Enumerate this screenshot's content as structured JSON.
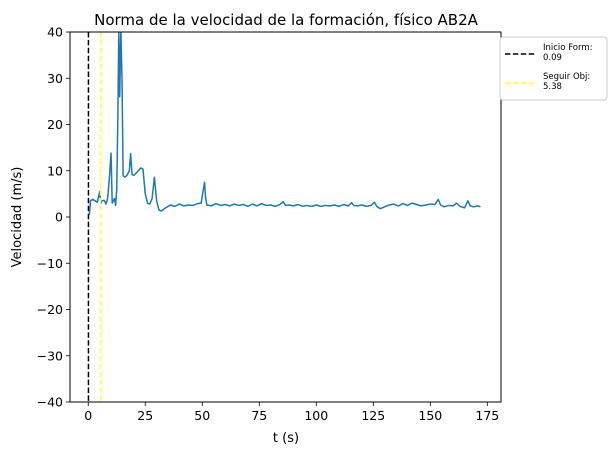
{
  "chart_data": {
    "type": "line",
    "title": "Norma de la velocidad de la formación, físico AB2A",
    "xlabel": "t (s)",
    "ylabel": "Velocidad (m/s)",
    "xlim": [
      -8,
      181
    ],
    "ylim": [
      -40,
      40
    ],
    "xticks": [
      0,
      25,
      50,
      75,
      100,
      125,
      150,
      175
    ],
    "yticks": [
      -40,
      -30,
      -20,
      -10,
      0,
      10,
      20,
      30,
      40
    ],
    "grid": false,
    "legend_position": "outside-top-right",
    "series": [
      {
        "color": "#1f77b4",
        "points": [
          [
            0.5,
            0.5
          ],
          [
            1,
            3.5
          ],
          [
            2,
            3.8
          ],
          [
            3,
            3.5
          ],
          [
            4,
            3.2
          ],
          [
            5,
            5.5
          ],
          [
            5.5,
            3.0
          ],
          [
            6,
            3.5
          ],
          [
            7,
            3.6
          ],
          [
            7.8,
            2.8
          ],
          [
            8.5,
            4.0
          ],
          [
            9.2,
            8.0
          ],
          [
            10,
            13.8
          ],
          [
            10.5,
            3.0
          ],
          [
            11,
            3.5
          ],
          [
            11.5,
            4.0
          ],
          [
            12,
            2.5
          ],
          [
            12.5,
            6.0
          ],
          [
            13,
            22.0
          ],
          [
            13.4,
            40.5
          ],
          [
            13.8,
            26.0
          ],
          [
            14.3,
            40.5
          ],
          [
            14.8,
            30.0
          ],
          [
            15.3,
            9.0
          ],
          [
            16,
            8.6
          ],
          [
            17,
            9.0
          ],
          [
            18,
            10.0
          ],
          [
            18.6,
            13.7
          ],
          [
            19.2,
            9.2
          ],
          [
            20,
            9.0
          ],
          [
            21,
            9.5
          ],
          [
            22,
            10.0
          ],
          [
            23,
            10.6
          ],
          [
            24,
            10.4
          ],
          [
            25,
            5.0
          ],
          [
            26,
            3.0
          ],
          [
            27,
            2.8
          ],
          [
            28,
            4.0
          ],
          [
            29,
            8.6
          ],
          [
            30,
            3.5
          ],
          [
            31,
            1.5
          ],
          [
            32,
            1.3
          ],
          [
            34,
            2.0
          ],
          [
            36,
            2.6
          ],
          [
            38,
            2.3
          ],
          [
            40,
            2.8
          ],
          [
            42,
            2.4
          ],
          [
            44,
            2.6
          ],
          [
            46,
            2.5
          ],
          [
            48,
            2.9
          ],
          [
            49.5,
            3.0
          ],
          [
            50.5,
            6.0
          ],
          [
            51,
            7.5
          ],
          [
            51.5,
            4.0
          ],
          [
            52,
            2.6
          ],
          [
            54,
            2.4
          ],
          [
            56,
            2.9
          ],
          [
            58,
            2.5
          ],
          [
            60,
            2.7
          ],
          [
            62,
            2.4
          ],
          [
            64,
            2.8
          ],
          [
            66,
            2.5
          ],
          [
            68,
            2.7
          ],
          [
            70,
            2.3
          ],
          [
            72,
            2.8
          ],
          [
            74,
            2.4
          ],
          [
            76,
            2.9
          ],
          [
            78,
            2.5
          ],
          [
            80,
            2.6
          ],
          [
            82,
            2.3
          ],
          [
            84,
            2.7
          ],
          [
            85.5,
            3.3
          ],
          [
            86.5,
            2.5
          ],
          [
            88,
            2.6
          ],
          [
            90,
            2.4
          ],
          [
            92,
            2.7
          ],
          [
            94,
            2.3
          ],
          [
            96,
            2.5
          ],
          [
            98,
            2.3
          ],
          [
            100,
            2.6
          ],
          [
            102,
            2.3
          ],
          [
            104,
            2.5
          ],
          [
            106,
            2.4
          ],
          [
            108,
            2.6
          ],
          [
            110,
            2.3
          ],
          [
            112,
            2.7
          ],
          [
            114,
            2.4
          ],
          [
            115.5,
            3.1
          ],
          [
            116.5,
            2.5
          ],
          [
            118,
            2.4
          ],
          [
            120,
            2.6
          ],
          [
            122,
            2.3
          ],
          [
            124,
            2.5
          ],
          [
            125.5,
            3.2
          ],
          [
            126.5,
            2.3
          ],
          [
            128,
            1.8
          ],
          [
            130,
            2.2
          ],
          [
            132,
            2.6
          ],
          [
            134,
            2.8
          ],
          [
            136,
            2.4
          ],
          [
            138,
            2.9
          ],
          [
            140,
            2.5
          ],
          [
            142,
            3.0
          ],
          [
            144,
            2.7
          ],
          [
            146,
            2.4
          ],
          [
            148,
            2.6
          ],
          [
            150,
            2.8
          ],
          [
            152,
            2.7
          ],
          [
            153.5,
            3.8
          ],
          [
            154.5,
            2.6
          ],
          [
            156,
            2.2
          ],
          [
            158,
            2.5
          ],
          [
            160,
            2.4
          ],
          [
            161.5,
            3.0
          ],
          [
            163,
            2.3
          ],
          [
            165,
            2.0
          ],
          [
            166.5,
            3.5
          ],
          [
            167.5,
            2.4
          ],
          [
            169,
            2.2
          ],
          [
            171,
            2.4
          ],
          [
            172,
            2.2
          ]
        ]
      }
    ],
    "vlines": [
      {
        "x": 0.09,
        "color": "#000000",
        "label": "Inicio Form:\n0.09"
      },
      {
        "x": 5.38,
        "color": "#ffff33",
        "label": "Seguir Obj:\n5.38"
      }
    ]
  }
}
